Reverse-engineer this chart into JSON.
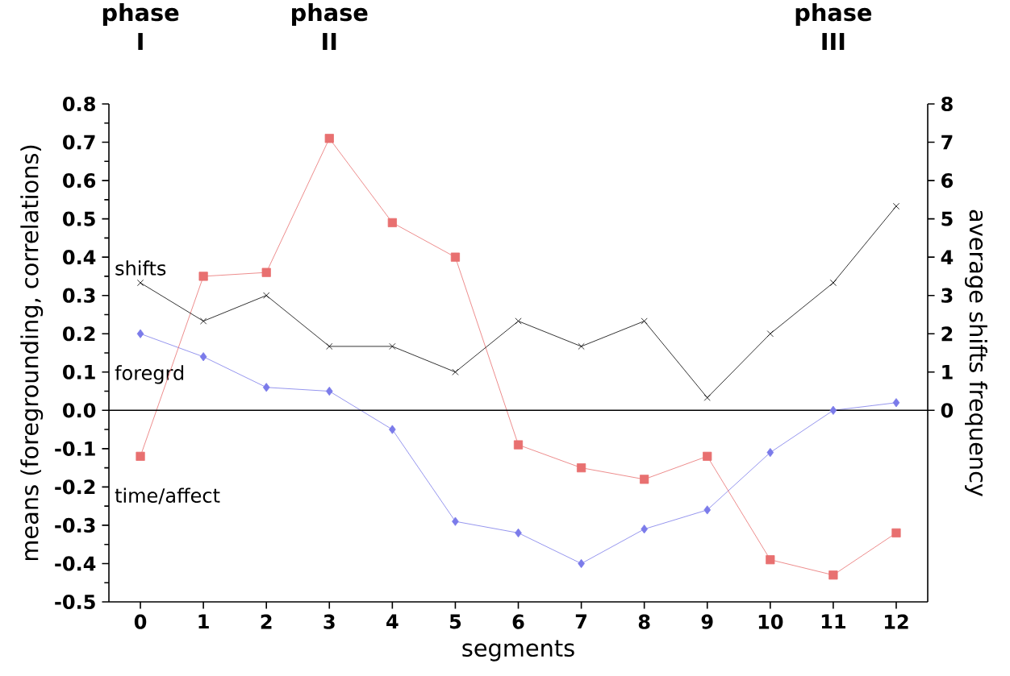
{
  "chart_data": {
    "type": "line",
    "xlabel": "segments",
    "ylabel": "means (foregrounding, correlations)",
    "y2label": "average shifts frequency",
    "x": [
      0,
      1,
      2,
      3,
      4,
      5,
      6,
      7,
      8,
      9,
      10,
      11,
      12
    ],
    "xlim": [
      -0.5,
      12.5
    ],
    "xticks": [
      0,
      1,
      2,
      3,
      4,
      5,
      6,
      7,
      8,
      9,
      10,
      11,
      12
    ],
    "ylim": [
      -0.5,
      0.8
    ],
    "yticks": [
      -0.5,
      -0.4,
      -0.3,
      -0.2,
      -0.1,
      {
        "value": 0,
        "label": "0.0"
      },
      0.1,
      0.2,
      0.3,
      0.4,
      0.5,
      0.6,
      0.7,
      0.8
    ],
    "y2lim": [
      -5,
      8
    ],
    "y2ticks": [
      0,
      1,
      2,
      3,
      4,
      5,
      6,
      7,
      8
    ],
    "annotations": [
      "phase I",
      "phase II",
      "phase III"
    ],
    "ref_lines": [
      {
        "axis": "y",
        "value": 0,
        "color": "#000000"
      }
    ],
    "series": [
      {
        "name": "shifts",
        "color": "#000000",
        "axis": "y2",
        "marker": "cross",
        "values": [
          3.33,
          2.33,
          3,
          1.67,
          1.67,
          1,
          2.33,
          1.67,
          2.33,
          0.33,
          2,
          3.33,
          5.33
        ]
      },
      {
        "name": "foregrd",
        "color": "#7b7bea",
        "marker": "diamond",
        "values": [
          0.2,
          0.14,
          0.06,
          0.05,
          -0.05,
          -0.29,
          -0.32,
          -0.4,
          -0.31,
          -0.26,
          -0.11,
          0,
          0.02
        ]
      },
      {
        "name": "time/affect",
        "color": "#e87070",
        "marker": "square",
        "values": [
          -0.12,
          0.35,
          0.36,
          0.71,
          0.49,
          0.4,
          -0.09,
          -0.15,
          -0.18,
          -0.12,
          -0.39,
          -0.43,
          -0.32
        ]
      }
    ]
  }
}
